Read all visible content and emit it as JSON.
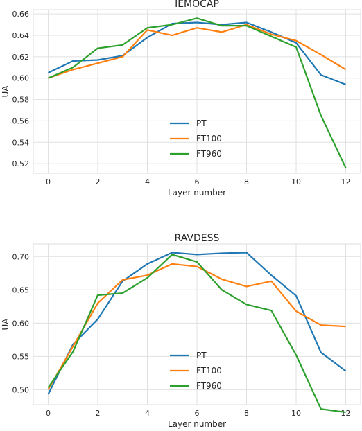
{
  "chart_data": [
    {
      "type": "line",
      "title": "IEMOCAP",
      "xlabel": "Layer number",
      "ylabel": "UA",
      "x": [
        0,
        1,
        2,
        3,
        4,
        5,
        6,
        7,
        8,
        9,
        10,
        11,
        12
      ],
      "xticks": [
        0,
        2,
        4,
        6,
        8,
        10,
        12
      ],
      "xlim": [
        -0.6,
        12.6
      ],
      "yticks": [
        0.52,
        0.54,
        0.56,
        0.58,
        0.6,
        0.62,
        0.64,
        0.66
      ],
      "ylim": [
        0.511,
        0.664
      ],
      "grid": true,
      "legend_position": "lower-center",
      "series": [
        {
          "name": "PT",
          "color": "#1f77b4",
          "values": [
            0.605,
            0.616,
            0.617,
            0.621,
            0.638,
            0.651,
            0.652,
            0.65,
            0.652,
            0.643,
            0.633,
            0.603,
            0.594
          ]
        },
        {
          "name": "FT100",
          "color": "#ff7f0e",
          "values": [
            0.6,
            0.608,
            0.614,
            0.62,
            0.645,
            0.64,
            0.647,
            0.643,
            0.65,
            0.641,
            0.635,
            0.622,
            0.608
          ]
        },
        {
          "name": "FT960",
          "color": "#2ca02c",
          "values": [
            0.6,
            0.61,
            0.628,
            0.631,
            0.647,
            0.65,
            0.656,
            0.649,
            0.649,
            0.639,
            0.629,
            0.565,
            0.516
          ]
        }
      ]
    },
    {
      "type": "line",
      "title": "RAVDESS",
      "xlabel": "Layer number",
      "ylabel": "UA",
      "x": [
        0,
        1,
        2,
        3,
        4,
        5,
        6,
        7,
        8,
        9,
        10,
        11,
        12
      ],
      "xticks": [
        0,
        2,
        4,
        6,
        8,
        10,
        12
      ],
      "xlim": [
        -0.6,
        12.6
      ],
      "yticks": [
        0.5,
        0.55,
        0.6,
        0.65,
        0.7
      ],
      "yticklabels": [
        "0.50",
        "0.55",
        "0.60",
        "0.65",
        "0.70"
      ],
      "ylim": [
        0.4775,
        0.719
      ],
      "grid": true,
      "legend_position": "lower-center",
      "series": [
        {
          "name": "PT",
          "color": "#1f77b4",
          "values": [
            0.493,
            0.568,
            0.606,
            0.663,
            0.689,
            0.706,
            0.703,
            0.705,
            0.706,
            0.672,
            0.641,
            0.556,
            0.528
          ]
        },
        {
          "name": "FT100",
          "color": "#ff7f0e",
          "values": [
            0.5,
            0.565,
            0.63,
            0.665,
            0.672,
            0.689,
            0.685,
            0.666,
            0.655,
            0.663,
            0.618,
            0.597,
            0.595
          ]
        },
        {
          "name": "FT960",
          "color": "#2ca02c",
          "values": [
            0.503,
            0.557,
            0.642,
            0.645,
            0.668,
            0.703,
            0.692,
            0.65,
            0.628,
            0.619,
            0.552,
            0.471,
            0.466
          ]
        }
      ]
    }
  ]
}
